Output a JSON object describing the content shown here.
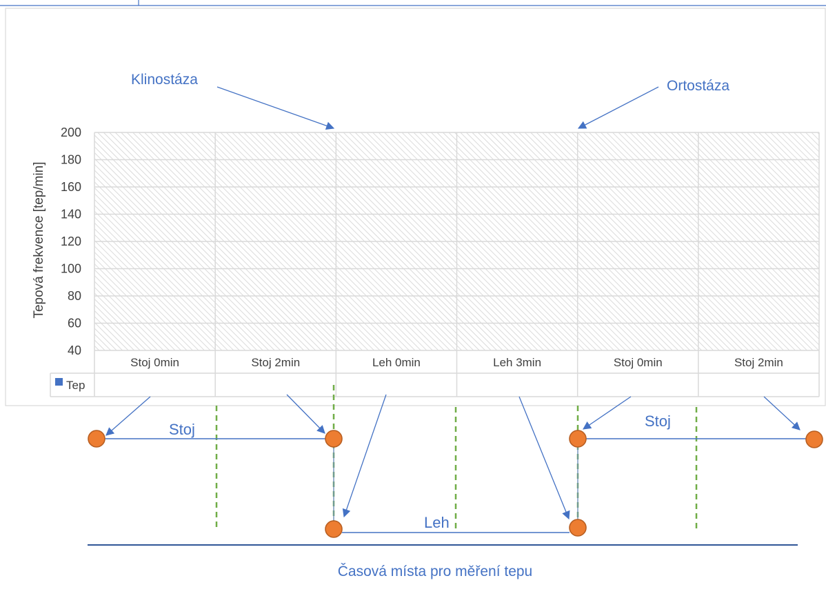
{
  "colors": {
    "accent": "#4472c4",
    "marker": "#ed7d31",
    "marker_border": "#b85f22",
    "divider": "#70ad47",
    "baseline": "#2f5597",
    "grid": "#d9d9d9",
    "text": "#404040"
  },
  "chart_data": {
    "type": "bar",
    "categories": [
      "Stoj 0min",
      "Stoj 2min",
      "Leh 0min",
      "Leh 3min",
      "Stoj 0min",
      "Stoj 2min"
    ],
    "series": [
      {
        "name": "Tep",
        "values": [
          null,
          null,
          null,
          null,
          null,
          null
        ]
      }
    ],
    "ylabel": "Tepová frekvence [tep/min]",
    "ylim": [
      40,
      200
    ],
    "yticks": [
      40,
      60,
      80,
      100,
      120,
      140,
      160,
      180,
      200
    ],
    "grid": true,
    "legend": "in data table",
    "data_table": true,
    "annotations": [
      "Klinostáza",
      "Ortostáza"
    ]
  },
  "diagram": {
    "phase_labels": [
      "Stoj",
      "Leh",
      "Stoj"
    ],
    "caption": "Časová místa pro měření tepu"
  }
}
